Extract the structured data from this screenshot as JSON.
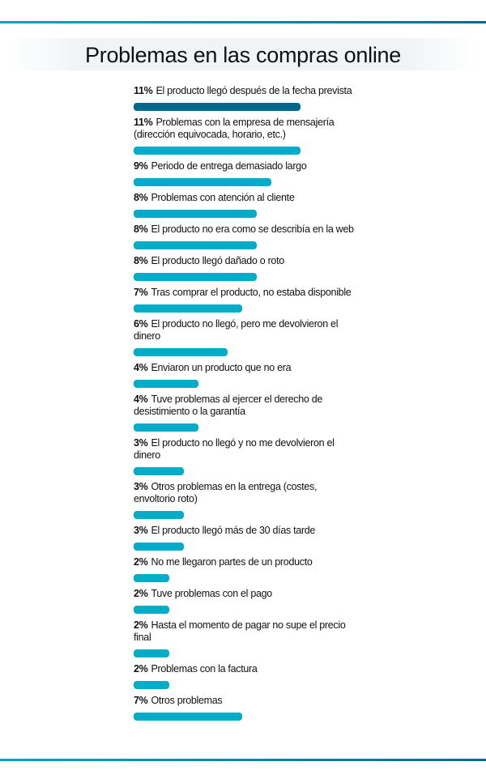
{
  "colors": {
    "highlight": "#006a8c",
    "bar": "#00acc8"
  },
  "chart_data": {
    "type": "bar",
    "orientation": "horizontal",
    "title": "Problemas en las compras online",
    "unit": "%",
    "categories": [
      "El producto llegó después de la fecha prevista",
      "Problemas con la empresa de mensajería (dirección equivocada, horario, etc.)",
      "Periodo  de entrega demasiado largo",
      "Problemas con  atención al cliente",
      "El producto no era como se describía en la web",
      "El producto llegó dañado o roto",
      "Tras comprar el  producto, no estaba disponible",
      "El producto no llegó, pero me devolvieron el dinero",
      "Enviaron un producto que no era",
      "Tuve problemas al ejercer el derecho de desistimiento o la garantía",
      "El producto no llegó y no me devolvieron el dinero",
      "Otros problemas en la entrega (costes, envoltorio roto)",
      "El producto llegó más de 30 días tarde",
      "No me llegaron partes de un producto",
      "Tuve problemas con el pago",
      "Hasta el momento de pagar no supe el precio final",
      "Problemas con la factura",
      "Otros problemas"
    ],
    "values": [
      11,
      11,
      9,
      8,
      8,
      8,
      7,
      6,
      4,
      4,
      3,
      3,
      3,
      2,
      2,
      2,
      2,
      7
    ],
    "grid": false,
    "legend": "none"
  }
}
